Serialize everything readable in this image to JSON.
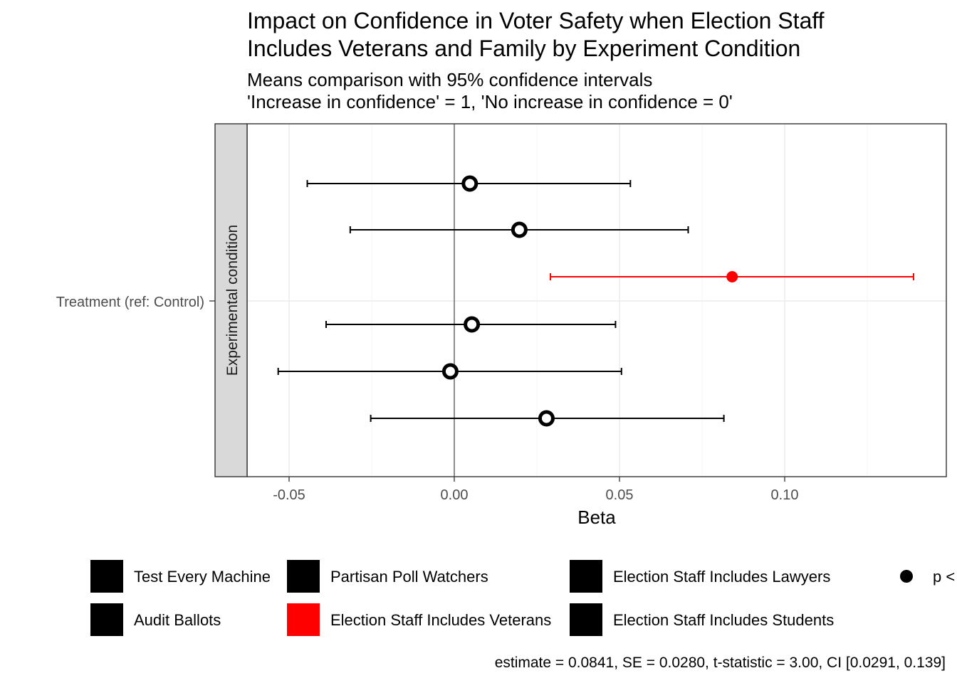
{
  "chart_data": {
    "type": "scatter",
    "title": [
      "Impact on Confidence in Voter Safety when Election Staff",
      "Includes Veterans and Family by Experiment Condition"
    ],
    "subtitle": [
      "Means comparison with 95% confidence intervals",
      "'Increase in confidence' = 1, 'No increase in confidence = 0'"
    ],
    "xlabel": "Beta",
    "ylabel": "Treatment (ref: Control)",
    "strip_label": "Experimental condition",
    "xlim": [
      -0.072,
      0.148
    ],
    "x_ticks": [
      -0.05,
      0.0,
      0.05,
      0.1
    ],
    "x_tick_labels": [
      "-0.05",
      "0.00",
      "0.05",
      "0.10"
    ],
    "grid": true,
    "reference_line": 0,
    "series": [
      {
        "name": "Test Every Machine",
        "estimate": 0.0047,
        "ci": [
          -0.0445,
          0.0533
        ],
        "color": "#000000",
        "significant": false
      },
      {
        "name": "Audit Ballots",
        "estimate": 0.0197,
        "ci": [
          -0.0315,
          0.0708
        ],
        "color": "#000000",
        "significant": false
      },
      {
        "name": "Election Staff Includes Veterans",
        "estimate": 0.0841,
        "ci": [
          0.0291,
          0.139
        ],
        "color": "#ff0000",
        "significant": true
      },
      {
        "name": "Partisan Poll Watchers",
        "estimate": 0.0053,
        "ci": [
          -0.0388,
          0.0488
        ],
        "color": "#000000",
        "significant": false
      },
      {
        "name": "Election Staff Includes Lawyers",
        "estimate": -0.0012,
        "ci": [
          -0.0533,
          0.0506
        ],
        "color": "#000000",
        "significant": false
      },
      {
        "name": "Election Staff Includes Students",
        "estimate": 0.0279,
        "ci": [
          -0.0253,
          0.0816
        ],
        "color": "#000000",
        "significant": false
      }
    ],
    "legend": {
      "items": [
        {
          "label": "Test Every Machine",
          "color": "#000000"
        },
        {
          "label": "Audit Ballots",
          "color": "#000000"
        },
        {
          "label": "Partisan Poll Watchers",
          "color": "#000000"
        },
        {
          "label": "Election Staff Includes Veterans",
          "color": "#ff0000"
        },
        {
          "label": "Election Staff Includes Lawyers",
          "color": "#000000"
        },
        {
          "label": "Election Staff Includes Students",
          "color": "#000000"
        }
      ],
      "shape_label": "p <",
      "placement": "bottom"
    },
    "caption": "estimate = 0.0841, SE = 0.0280, t-statistic = 3.00, CI [0.0291, 0.139]"
  }
}
